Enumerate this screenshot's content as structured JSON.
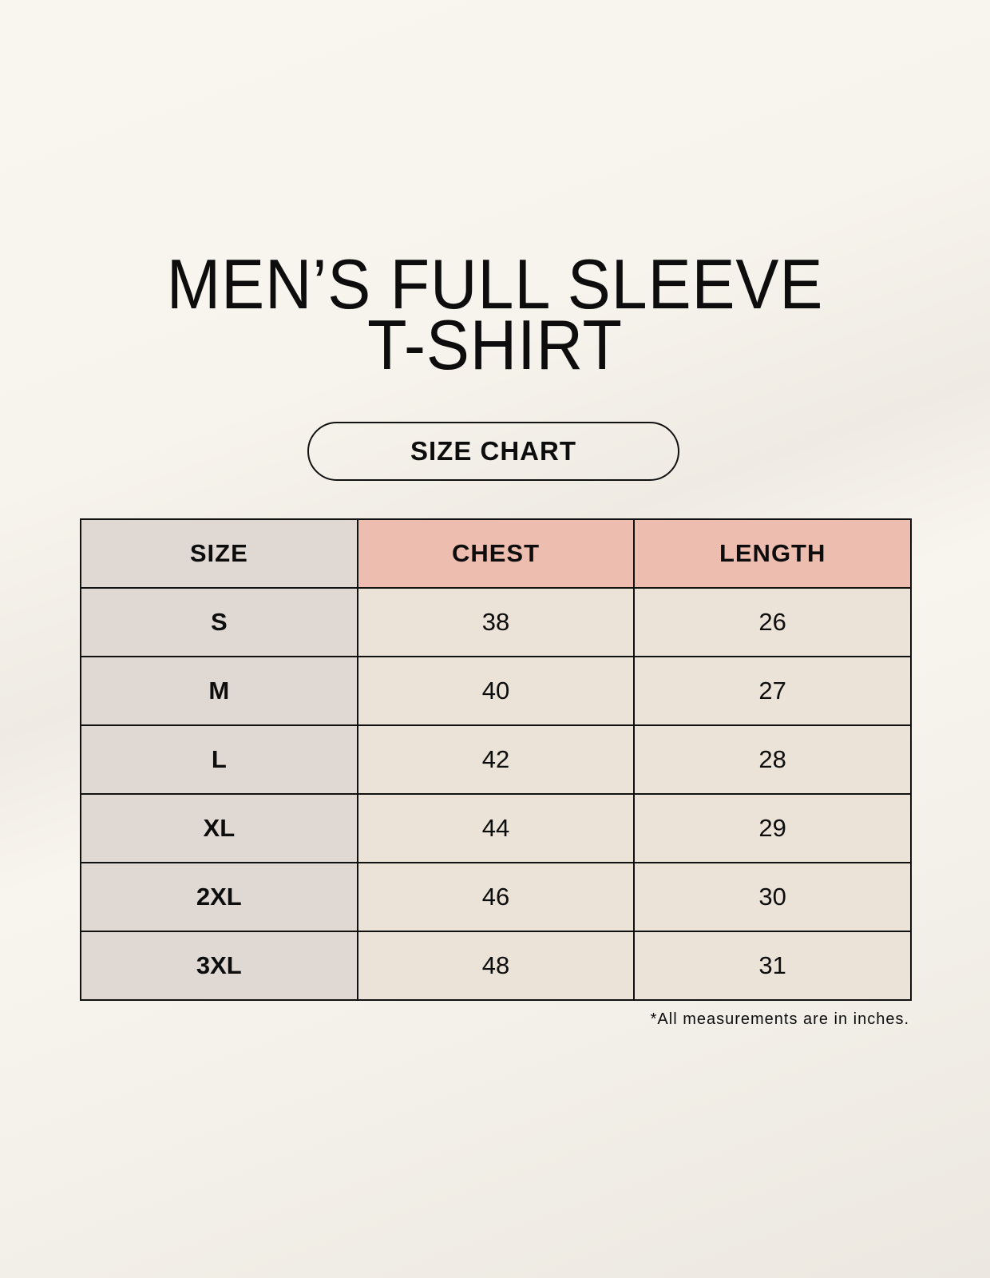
{
  "title": {
    "line1": "MEN’S FULL SLEEVE",
    "line2": "T-SHIRT"
  },
  "subtitle": "SIZE CHART",
  "table": {
    "headers": [
      "SIZE",
      "CHEST",
      "LENGTH"
    ],
    "rows": [
      [
        "S",
        "38",
        "26"
      ],
      [
        "M",
        "40",
        "27"
      ],
      [
        "L",
        "42",
        "28"
      ],
      [
        "XL",
        "44",
        "29"
      ],
      [
        "2XL",
        "46",
        "30"
      ],
      [
        "3XL",
        "48",
        "31"
      ]
    ]
  },
  "footnote": "*All measurements are in inches.",
  "colors": {
    "size_column": "#e0d9d3",
    "measure_header": "#edbdb0",
    "cell": "#ebe3d8"
  }
}
